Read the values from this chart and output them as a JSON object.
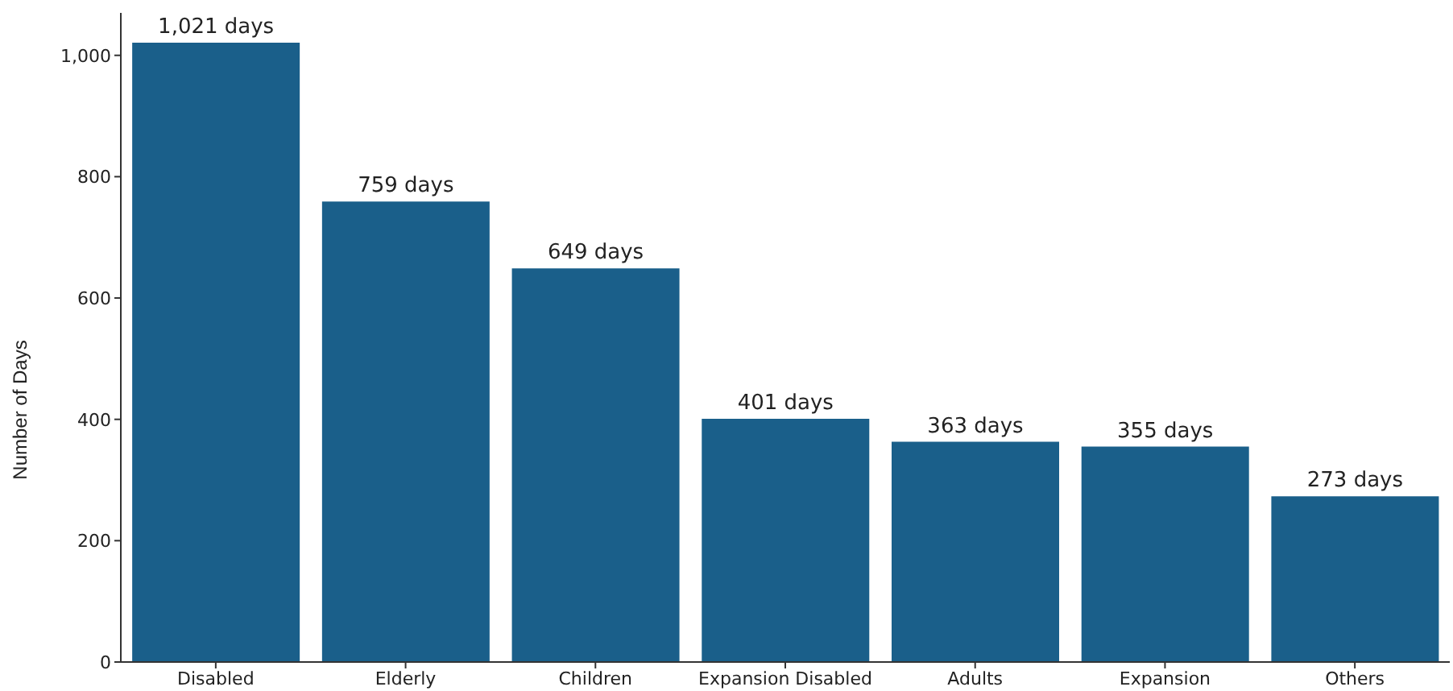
{
  "chart_data": {
    "type": "bar",
    "ylabel": "Number of Days",
    "categories": [
      "Disabled",
      "Elderly",
      "Children",
      "Expansion  Disabled",
      "Adults",
      "Expansion",
      "Others"
    ],
    "values": [
      1021,
      759,
      649,
      401,
      363,
      355,
      273
    ],
    "value_labels": [
      "1,021 days",
      "759 days",
      "649 days",
      "401 days",
      "363 days",
      "355 days",
      "273 days"
    ],
    "color": "#1a5f8a",
    "ylim": [
      0,
      1070
    ],
    "yticks": [
      0,
      200,
      400,
      600,
      800,
      {
        "value": 1000,
        "label": "1,000"
      }
    ],
    "grid": false,
    "legend": false
  }
}
